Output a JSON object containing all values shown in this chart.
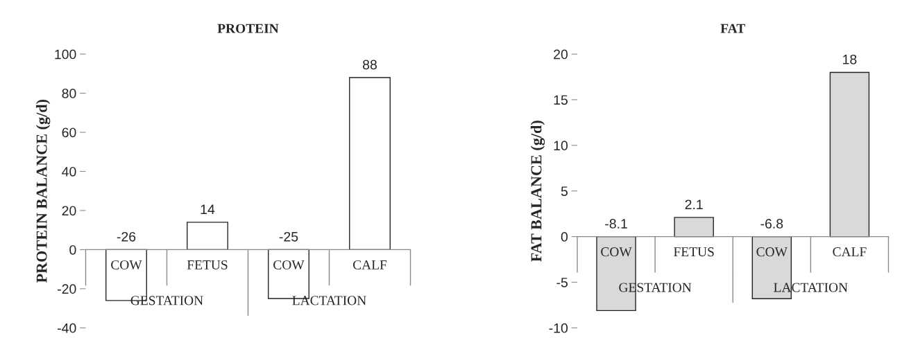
{
  "chart_data": [
    {
      "type": "bar",
      "title": "PROTEIN",
      "ylabel": "PROTEIN BALANCE (g/d)",
      "categories": [
        "COW",
        "FETUS",
        "COW",
        "CALF"
      ],
      "series": [
        {
          "color": "#ffffff",
          "values": [
            -26,
            14,
            -25,
            88
          ]
        }
      ],
      "ylim": [
        -40,
        100
      ],
      "yticks": [
        -40,
        -20,
        0,
        20,
        40,
        60,
        80,
        100
      ],
      "data_labels": true,
      "grid": false,
      "legend": false,
      "annotations": [
        "GESTATION",
        "LACTATION"
      ]
    },
    {
      "type": "bar",
      "title": "FAT",
      "ylabel": "FAT BALANCE (g/d)",
      "categories": [
        "COW",
        "FETUS",
        "COW",
        "CALF"
      ],
      "series": [
        {
          "color": "#d9d9d9",
          "values": [
            -8.1,
            2.1,
            -6.8,
            18
          ]
        }
      ],
      "ylim": [
        -10,
        20
      ],
      "yticks": [
        -10,
        -5,
        0,
        5,
        10,
        15,
        20
      ],
      "data_labels": true,
      "grid": false,
      "legend": false,
      "annotations": [
        "GESTATION",
        "LACTATION"
      ]
    }
  ]
}
